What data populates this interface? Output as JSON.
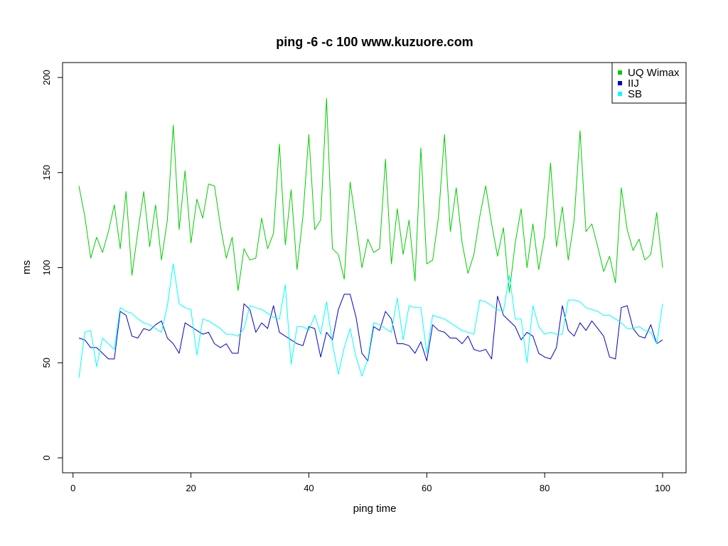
{
  "chart_data": {
    "type": "line",
    "title": "ping -6 -c 100 www.kuzuore.com",
    "xlabel": "ping time",
    "ylabel": "ms",
    "xlim": [
      1,
      100
    ],
    "ylim": [
      0,
      200
    ],
    "x_ticks": [
      "0",
      "20",
      "40",
      "60",
      "80",
      "100"
    ],
    "y_ticks": [
      "0",
      "50",
      "100",
      "150",
      "200"
    ],
    "grid": false,
    "legend_position": "top-right",
    "x": [
      1,
      2,
      3,
      4,
      5,
      6,
      7,
      8,
      9,
      10,
      11,
      12,
      13,
      14,
      15,
      16,
      17,
      18,
      19,
      20,
      21,
      22,
      23,
      24,
      25,
      26,
      27,
      28,
      29,
      30,
      31,
      32,
      33,
      34,
      35,
      36,
      37,
      38,
      39,
      40,
      41,
      42,
      43,
      44,
      45,
      46,
      47,
      48,
      49,
      50,
      51,
      52,
      53,
      54,
      55,
      56,
      57,
      58,
      59,
      60,
      61,
      62,
      63,
      64,
      65,
      66,
      67,
      68,
      69,
      70,
      71,
      72,
      73,
      74,
      75,
      76,
      77,
      78,
      79,
      80,
      81,
      82,
      83,
      84,
      85,
      86,
      87,
      88,
      89,
      90,
      91,
      92,
      93,
      94,
      95,
      96,
      97,
      98,
      99,
      100
    ],
    "series": [
      {
        "name": "UQ Wimax",
        "color": "#00cd00",
        "values": [
          143,
          127,
          105,
          116,
          108,
          119,
          133,
          110,
          140,
          96,
          119,
          140,
          111,
          133,
          104,
          125,
          175,
          120,
          151,
          113,
          136,
          126,
          144,
          143,
          122,
          105,
          116,
          88,
          110,
          104,
          105,
          126,
          110,
          118,
          165,
          112,
          141,
          99,
          127,
          170,
          120,
          125,
          189,
          110,
          107,
          94,
          145,
          123,
          100,
          115,
          108,
          110,
          157,
          102,
          131,
          107,
          125,
          93,
          163,
          102,
          104,
          127,
          170,
          119,
          142,
          113,
          97,
          107,
          127,
          143,
          123,
          106,
          121,
          87,
          113,
          131,
          100,
          123,
          99,
          117,
          155,
          111,
          132,
          104,
          125,
          172,
          119,
          123,
          111,
          98,
          106,
          92,
          142,
          120,
          109,
          115,
          104,
          107,
          129,
          100
        ]
      },
      {
        "name": "IIJ",
        "color": "#0000cd",
        "values": [
          63,
          62,
          58,
          58,
          55,
          52,
          52,
          77,
          75,
          64,
          63,
          68,
          67,
          70,
          72,
          63,
          60,
          55,
          71,
          69,
          67,
          65,
          66,
          60,
          58,
          60,
          55,
          55,
          81,
          78,
          66,
          71,
          68,
          80,
          66,
          64,
          62,
          60,
          59,
          69,
          68,
          53,
          66,
          62,
          78,
          86,
          86,
          74,
          55,
          51,
          69,
          67,
          77,
          73,
          60,
          60,
          59,
          55,
          61,
          51,
          70,
          67,
          66,
          63,
          63,
          60,
          64,
          57,
          56,
          57,
          52,
          85,
          75,
          72,
          69,
          62,
          66,
          64,
          55,
          53,
          52,
          58,
          80,
          67,
          64,
          71,
          67,
          72,
          68,
          64,
          53,
          52,
          79,
          80,
          68,
          64,
          63,
          70,
          60,
          62
        ]
      },
      {
        "name": "SB",
        "color": "#00ffff",
        "values": [
          42,
          66,
          67,
          48,
          63,
          60,
          57,
          79,
          77,
          76,
          73,
          71,
          70,
          68,
          66,
          80,
          102,
          81,
          79,
          78,
          54,
          73,
          72,
          70,
          68,
          65,
          65,
          64,
          68,
          80,
          79,
          78,
          76,
          74,
          73,
          91,
          49,
          69,
          69,
          67,
          75,
          65,
          82,
          60,
          44,
          58,
          68,
          53,
          43,
          52,
          71,
          70,
          68,
          66,
          84,
          62,
          80,
          79,
          79,
          55,
          75,
          74,
          73,
          71,
          69,
          67,
          66,
          65,
          83,
          82,
          80,
          78,
          77,
          96,
          73,
          73,
          50,
          80,
          69,
          65,
          66,
          65,
          65,
          83,
          83,
          82,
          79,
          78,
          77,
          75,
          75,
          73,
          71,
          68,
          68,
          69,
          67,
          66,
          60,
          81
        ]
      }
    ]
  }
}
